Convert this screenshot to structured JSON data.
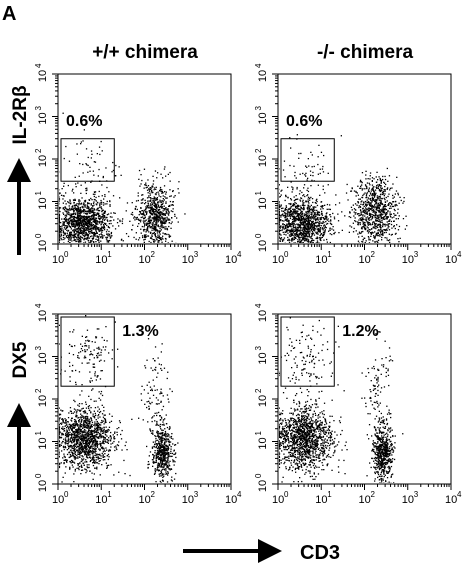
{
  "figure": {
    "panel_letter": "A",
    "column_titles": [
      "+/+ chimera",
      "-/- chimera"
    ],
    "row_axis_labels": [
      "IL-2Rβ",
      "DX5"
    ],
    "x_axis_label": "CD3"
  },
  "chart_data": [
    {
      "type": "scatter",
      "scale": "log",
      "xlim": [
        1,
        10000
      ],
      "ylim": [
        1,
        10000
      ],
      "x_tick_labels": [
        "10",
        "10",
        "10",
        "10",
        "10"
      ],
      "x_tick_exponents": [
        "0",
        "1",
        "2",
        "3",
        "4"
      ],
      "y_tick_labels": [
        "10",
        "10",
        "10",
        "10",
        "10"
      ],
      "y_tick_exponents": [
        "0",
        "1",
        "2",
        "3",
        "4"
      ],
      "ylabel": "IL-2Rβ",
      "gate": {
        "x": [
          1,
          20
        ],
        "y": [
          30,
          300
        ]
      },
      "annotation": "0.6%",
      "populations": [
        {
          "x": 3.5,
          "y": 3,
          "spread_x": 0.35,
          "spread_y": 0.33,
          "n": 1300
        },
        {
          "x": 170,
          "y": 5,
          "spread_x": 0.22,
          "spread_y": 0.38,
          "n": 700
        },
        {
          "x": 5,
          "y": 70,
          "spread_x": 0.3,
          "spread_y": 0.35,
          "n": 60
        }
      ]
    },
    {
      "type": "scatter",
      "scale": "log",
      "xlim": [
        1,
        10000
      ],
      "ylim": [
        1,
        10000
      ],
      "x_tick_labels": [
        "10",
        "10",
        "10",
        "10",
        "10"
      ],
      "x_tick_exponents": [
        "0",
        "1",
        "2",
        "3",
        "4"
      ],
      "y_tick_labels": [
        "10",
        "10",
        "10",
        "10",
        "10"
      ],
      "y_tick_exponents": [
        "0",
        "1",
        "2",
        "3",
        "4"
      ],
      "gate": {
        "x": [
          1,
          20
        ],
        "y": [
          30,
          300
        ]
      },
      "annotation": "0.6%",
      "populations": [
        {
          "x": 3.5,
          "y": 3,
          "spread_x": 0.33,
          "spread_y": 0.33,
          "n": 1250
        },
        {
          "x": 170,
          "y": 6,
          "spread_x": 0.25,
          "spread_y": 0.4,
          "n": 800
        },
        {
          "x": 5,
          "y": 70,
          "spread_x": 0.3,
          "spread_y": 0.35,
          "n": 55
        }
      ]
    },
    {
      "type": "scatter",
      "scale": "log",
      "xlim": [
        1,
        10000
      ],
      "ylim": [
        1,
        10000
      ],
      "x_tick_labels": [
        "10",
        "10",
        "10",
        "10",
        "10"
      ],
      "x_tick_exponents": [
        "0",
        "1",
        "2",
        "3",
        "4"
      ],
      "y_tick_labels": [
        "10",
        "10",
        "10",
        "10",
        "10"
      ],
      "y_tick_exponents": [
        "0",
        "1",
        "2",
        "3",
        "4"
      ],
      "ylabel": "DX5",
      "gate": {
        "x": [
          1,
          20
        ],
        "y": [
          200,
          10000
        ]
      },
      "annotation": "1.3%",
      "populations": [
        {
          "x": 4,
          "y": 12,
          "spread_x": 0.33,
          "spread_y": 0.38,
          "n": 1300
        },
        {
          "x": 250,
          "y": 6,
          "spread_x": 0.12,
          "spread_y": 0.33,
          "n": 500
        },
        {
          "x": 5,
          "y": 1000,
          "spread_x": 0.3,
          "spread_y": 0.38,
          "n": 130
        },
        {
          "x": 180,
          "y": 150,
          "spread_x": 0.15,
          "spread_y": 0.55,
          "n": 90
        }
      ]
    },
    {
      "type": "scatter",
      "scale": "log",
      "xlim": [
        1,
        10000
      ],
      "ylim": [
        1,
        10000
      ],
      "x_tick_labels": [
        "10",
        "10",
        "10",
        "10",
        "10"
      ],
      "x_tick_exponents": [
        "0",
        "1",
        "2",
        "3",
        "4"
      ],
      "y_tick_labels": [
        "10",
        "10",
        "10",
        "10",
        "10"
      ],
      "y_tick_exponents": [
        "0",
        "1",
        "2",
        "3",
        "4"
      ],
      "gate": {
        "x": [
          1,
          20
        ],
        "y": [
          200,
          10000
        ]
      },
      "annotation": "1.2%",
      "populations": [
        {
          "x": 4,
          "y": 12,
          "spread_x": 0.33,
          "spread_y": 0.38,
          "n": 1300
        },
        {
          "x": 260,
          "y": 6,
          "spread_x": 0.12,
          "spread_y": 0.33,
          "n": 550
        },
        {
          "x": 5,
          "y": 1000,
          "spread_x": 0.3,
          "spread_y": 0.38,
          "n": 120
        },
        {
          "x": 190,
          "y": 200,
          "spread_x": 0.15,
          "spread_y": 0.55,
          "n": 100
        }
      ]
    }
  ]
}
